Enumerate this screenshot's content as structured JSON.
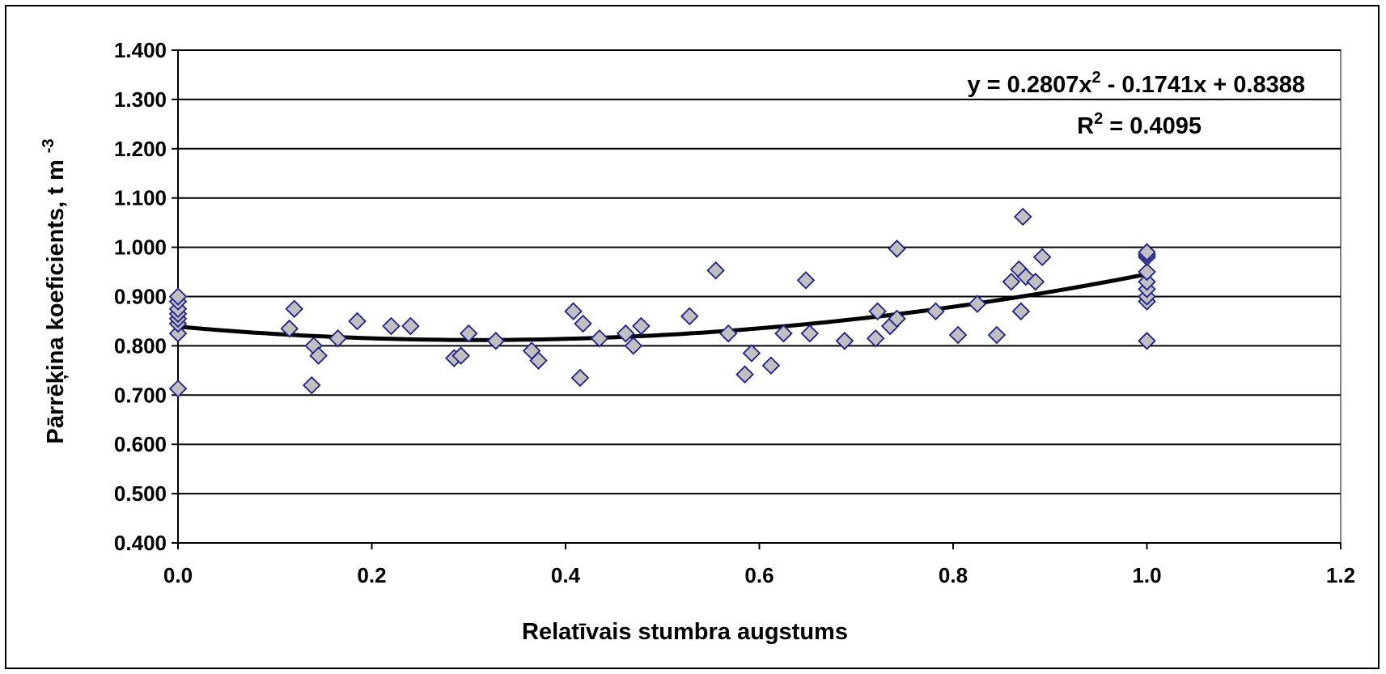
{
  "chart_data": {
    "type": "scatter",
    "xlabel": "Relatīvais stumbra augstums",
    "ylabel": "Pārrēķina koeficients, t m",
    "ylabel_sup": "-3",
    "xlim": [
      0.0,
      1.2
    ],
    "ylim": [
      0.4,
      1.4
    ],
    "x_ticks": [
      "0.0",
      "0.2",
      "0.4",
      "0.6",
      "0.8",
      "1.0",
      "1.2"
    ],
    "y_ticks": [
      "0.400",
      "0.500",
      "0.600",
      "0.700",
      "0.800",
      "0.900",
      "1.000",
      "1.100",
      "1.200",
      "1.300",
      "1.400"
    ],
    "grid": "horizontal",
    "trendline": {
      "type": "polynomial",
      "coefficients": [
        0.2807,
        -0.1741,
        0.8388
      ],
      "x_range": [
        0.0,
        1.0
      ],
      "equation_parts": [
        "y = 0.2807x",
        "2",
        " - 0.1741x + 0.8388"
      ],
      "r2_parts": [
        "R",
        "2",
        " = 0.4095"
      ]
    },
    "series": [
      {
        "marker": "diamond",
        "fill": "#c0c0c0",
        "stroke": "#1f1f8c",
        "points": [
          [
            0.0,
            0.713
          ],
          [
            0.0,
            0.825
          ],
          [
            0.0,
            0.845
          ],
          [
            0.0,
            0.855
          ],
          [
            0.0,
            0.865
          ],
          [
            0.0,
            0.875
          ],
          [
            0.0,
            0.89
          ],
          [
            0.0,
            0.9
          ],
          [
            0.115,
            0.835
          ],
          [
            0.12,
            0.875
          ],
          [
            0.138,
            0.72
          ],
          [
            0.14,
            0.8
          ],
          [
            0.145,
            0.78
          ],
          [
            0.165,
            0.815
          ],
          [
            0.185,
            0.85
          ],
          [
            0.22,
            0.84
          ],
          [
            0.24,
            0.84
          ],
          [
            0.285,
            0.775
          ],
          [
            0.292,
            0.78
          ],
          [
            0.3,
            0.825
          ],
          [
            0.328,
            0.81
          ],
          [
            0.365,
            0.79
          ],
          [
            0.372,
            0.77
          ],
          [
            0.408,
            0.87
          ],
          [
            0.415,
            0.735
          ],
          [
            0.418,
            0.845
          ],
          [
            0.435,
            0.815
          ],
          [
            0.462,
            0.825
          ],
          [
            0.47,
            0.8
          ],
          [
            0.478,
            0.84
          ],
          [
            0.528,
            0.86
          ],
          [
            0.555,
            0.953
          ],
          [
            0.568,
            0.825
          ],
          [
            0.585,
            0.742
          ],
          [
            0.592,
            0.785
          ],
          [
            0.612,
            0.76
          ],
          [
            0.625,
            0.825
          ],
          [
            0.648,
            0.933
          ],
          [
            0.652,
            0.825
          ],
          [
            0.688,
            0.81
          ],
          [
            0.72,
            0.815
          ],
          [
            0.722,
            0.87
          ],
          [
            0.735,
            0.84
          ],
          [
            0.742,
            0.997
          ],
          [
            0.742,
            0.855
          ],
          [
            0.782,
            0.87
          ],
          [
            0.805,
            0.822
          ],
          [
            0.825,
            0.885
          ],
          [
            0.845,
            0.822
          ],
          [
            0.86,
            0.93
          ],
          [
            0.868,
            0.955
          ],
          [
            0.87,
            0.87
          ],
          [
            0.872,
            1.062
          ],
          [
            0.875,
            0.94
          ],
          [
            0.885,
            0.93
          ],
          [
            0.892,
            0.98
          ],
          [
            1.0,
            0.81
          ],
          [
            1.0,
            0.89
          ],
          [
            1.0,
            0.9
          ],
          [
            1.0,
            0.915
          ],
          [
            1.0,
            0.93
          ],
          [
            1.0,
            0.95
          ],
          [
            1.0,
            0.98
          ],
          [
            1.0,
            0.985
          ],
          [
            1.0,
            0.99
          ]
        ]
      }
    ]
  }
}
